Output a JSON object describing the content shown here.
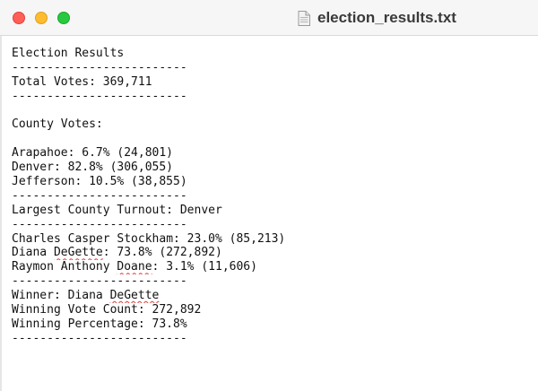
{
  "window": {
    "title": "election_results.txt",
    "icons": {
      "document": "document-icon"
    },
    "colors": {
      "close": "#ff5f57",
      "minimize": "#febc2e",
      "zoom": "#28c840",
      "spellcheck": "#e03a3a"
    }
  },
  "document": {
    "heading": "Election Results",
    "separator": "-------------------------",
    "total_votes": "Total Votes: 369,711",
    "county_heading": "County Votes:",
    "counties": [
      "Arapahoe: 6.7% (24,801)",
      "Denver: 82.8% (306,055)",
      "Jefferson: 10.5% (38,855)"
    ],
    "largest_turnout": "Largest County Turnout: Denver",
    "candidates": {
      "c1_prefix": "Charles Casper ",
      "c1_flag": "Stockham",
      "c1_suffix": ": 23.0% (85,213)",
      "c2_prefix": "Diana ",
      "c2_flag": "DeGette",
      "c2_suffix": ": 73.8% (272,892)",
      "c3_prefix": "Raymon Anthony ",
      "c3_flag": "Doane",
      "c3_suffix": ": 3.1% (11,606)"
    },
    "winner_prefix": "Winner: Diana ",
    "winner_flag": "DeGette",
    "winning_vote_count": "Winning Vote Count: 272,892",
    "winning_percentage": "Winning Percentage: 73.8%"
  }
}
